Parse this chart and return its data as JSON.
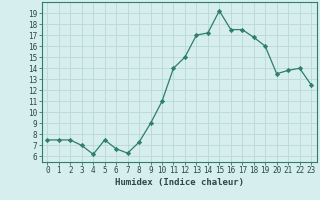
{
  "x": [
    0,
    1,
    2,
    3,
    4,
    5,
    6,
    7,
    8,
    9,
    10,
    11,
    12,
    13,
    14,
    15,
    16,
    17,
    18,
    19,
    20,
    21,
    22,
    23
  ],
  "y": [
    7.5,
    7.5,
    7.5,
    7.0,
    6.2,
    7.5,
    6.7,
    6.3,
    7.3,
    9.0,
    11.0,
    14.0,
    15.0,
    17.0,
    17.2,
    19.2,
    17.5,
    17.5,
    16.8,
    16.0,
    13.5,
    13.8,
    14.0,
    12.5
  ],
  "line_color": "#2e7d6e",
  "marker": "D",
  "marker_size": 2.2,
  "bg_color": "#d6efee",
  "grid_color": "#b8d8d6",
  "xlabel": "Humidex (Indice chaleur)",
  "ylabel_ticks": [
    6,
    7,
    8,
    9,
    10,
    11,
    12,
    13,
    14,
    15,
    16,
    17,
    18,
    19
  ],
  "xlim": [
    -0.5,
    23.5
  ],
  "ylim": [
    5.5,
    20.0
  ],
  "font_color": "#2a4a42",
  "tick_fontsize": 5.5,
  "xlabel_fontsize": 6.5
}
